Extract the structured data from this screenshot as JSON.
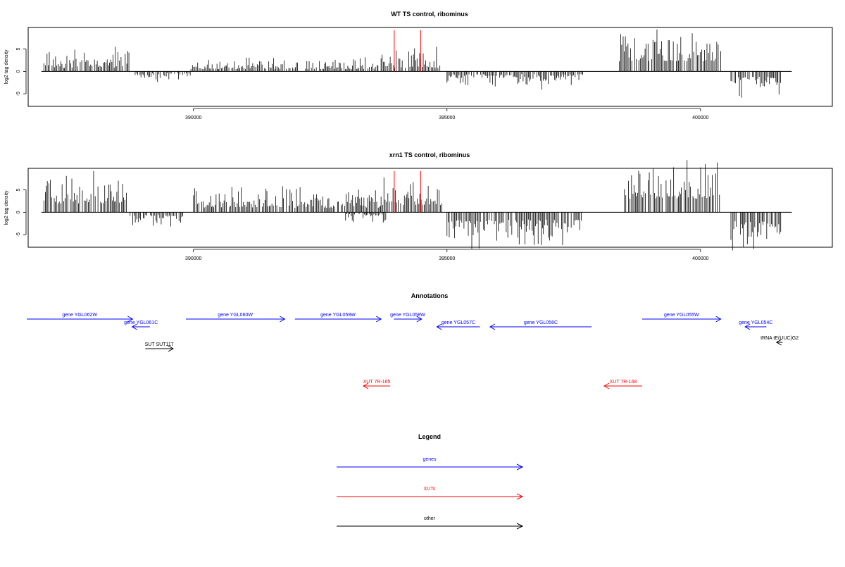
{
  "chart_data": [
    {
      "type": "bar",
      "title": "WT TS control, ribominus",
      "ylabel": "log2 tag density",
      "xlabel": "",
      "xlim": [
        386740,
        402600
      ],
      "ylim": [
        -7.8,
        9.8
      ],
      "x_ticks": [
        "390000",
        "395000",
        "400000"
      ],
      "y_ticks": [
        "-5",
        "0",
        "5"
      ],
      "grid": false,
      "series_segments": [
        {
          "x": [
            387050,
            388750
          ],
          "amp": 3.2,
          "min": 0.8,
          "sign": 1
        },
        {
          "x": [
            388850,
            389950
          ],
          "amp": 1.5,
          "min": 0.4,
          "sign": -1
        },
        {
          "x": [
            389950,
            393700
          ],
          "amp": 1.8,
          "min": 0.5,
          "sign": 1
        },
        {
          "x": [
            393700,
            394900
          ],
          "amp": 3.2,
          "min": 0.8,
          "sign": 1
        },
        {
          "x": [
            395000,
            397700
          ],
          "amp": 2.4,
          "min": 0.6,
          "sign": -1
        },
        {
          "x": [
            398400,
            400400
          ],
          "amp": 5.6,
          "min": 2.2,
          "sign": 1
        },
        {
          "x": [
            400600,
            401600
          ],
          "amp": 3.3,
          "min": 1.2,
          "sign": -1
        }
      ],
      "highlight_x": [
        393960,
        394480
      ],
      "highlight_y": [
        0,
        9.2
      ],
      "colors": {
        "bars": "#000000",
        "highlight": "#ff0000"
      }
    },
    {
      "type": "bar",
      "title": "xrn1 TS control, ribominus",
      "ylabel": "log2 tag density",
      "xlabel": "",
      "xlim": [
        386740,
        402600
      ],
      "ylim": [
        -7.8,
        9.8
      ],
      "x_ticks": [
        "390000",
        "395000",
        "400000"
      ],
      "y_ticks": [
        "-5",
        "0",
        "5"
      ],
      "grid": false,
      "series_segments": [
        {
          "x": [
            387050,
            388700
          ],
          "amp": 5.2,
          "min": 2.0,
          "sign": 1
        },
        {
          "x": [
            388750,
            389800
          ],
          "amp": 2.2,
          "min": 0.6,
          "sign": -1
        },
        {
          "x": [
            390000,
            393700
          ],
          "amp": 3.4,
          "min": 1.0,
          "sign": 1
        },
        {
          "x": [
            393000,
            393800
          ],
          "amp": 1.6,
          "min": 0.4,
          "sign": -1
        },
        {
          "x": [
            393700,
            394900
          ],
          "amp": 4.6,
          "min": 1.6,
          "sign": 1
        },
        {
          "x": [
            395000,
            397700
          ],
          "amp": 4.4,
          "min": 1.6,
          "sign": -1
        },
        {
          "x": [
            398500,
            400400
          ],
          "amp": 6.8,
          "min": 3.0,
          "sign": 1
        },
        {
          "x": [
            400600,
            401600
          ],
          "amp": 4.6,
          "min": 2.0,
          "sign": -1
        }
      ],
      "highlight_x": [
        393960,
        394480
      ],
      "highlight_y": [
        0,
        9.2
      ],
      "colors": {
        "bars": "#000000",
        "highlight": "#ff0000"
      }
    }
  ],
  "annotations": {
    "title": "Annotations",
    "genes": [
      {
        "label": "gene YGL062W",
        "start": 386200,
        "end": 388800,
        "dir": "right",
        "row": 0
      },
      {
        "label": "gene YGL061C",
        "start": 389140,
        "end": 388790,
        "dir": "left",
        "row": 1
      },
      {
        "label": "gene YGL060W",
        "start": 389850,
        "end": 391800,
        "dir": "right",
        "row": 0
      },
      {
        "label": "gene YGL059W",
        "start": 392000,
        "end": 393700,
        "dir": "right",
        "row": 0
      },
      {
        "label": "gene YGL058W",
        "start": 393950,
        "end": 394500,
        "dir": "right",
        "row": 0
      },
      {
        "label": "gene YGL057C",
        "start": 395650,
        "end": 394800,
        "dir": "left",
        "row": 1
      },
      {
        "label": "gene YGL056C",
        "start": 397850,
        "end": 395850,
        "dir": "left",
        "row": 1
      },
      {
        "label": "gene YGL055W",
        "start": 398850,
        "end": 400400,
        "dir": "right",
        "row": 0
      },
      {
        "label": "gene YGL054C",
        "start": 401300,
        "end": 400880,
        "dir": "left",
        "row": 1
      }
    ],
    "others": [
      {
        "label": "SUT SUT117",
        "start": 389050,
        "end": 389600,
        "dir": "right",
        "row": 3
      },
      {
        "label": "tRNA tE(UUC)G2",
        "start": 401620,
        "end": 401500,
        "dir": "left",
        "row": 2
      }
    ],
    "xuts": [
      {
        "label": "XUT 7R-165",
        "start": 393880,
        "end": 393350,
        "dir": "left",
        "row": 4
      },
      {
        "label": "XUT 7R-168",
        "start": 398850,
        "end": 398100,
        "dir": "left",
        "row": 4
      }
    ]
  },
  "legend": {
    "title": "Legend",
    "items": [
      {
        "label": "genes",
        "color": "#0000ff"
      },
      {
        "label": "XUTs",
        "color": "#ff0000"
      },
      {
        "label": "other",
        "color": "#000000"
      }
    ]
  }
}
